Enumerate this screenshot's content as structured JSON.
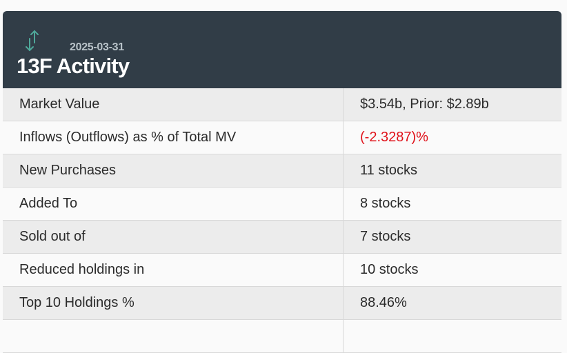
{
  "header": {
    "date": "2025-03-31",
    "title": "13F Activity",
    "icon": "arrows-up-down-icon",
    "icon_color": "#4fa89a"
  },
  "rows": [
    {
      "label": "Market Value",
      "value": "$3.54b, Prior: $2.89b"
    },
    {
      "label": "Inflows (Outflows) as % of Total MV",
      "value": "(-2.3287)%",
      "value_color": "#e0121a"
    },
    {
      "label": "New Purchases",
      "value": "11 stocks"
    },
    {
      "label": "Added To",
      "value": "8 stocks"
    },
    {
      "label": "Sold out of",
      "value": "7 stocks"
    },
    {
      "label": "Reduced holdings in",
      "value": "10 stocks"
    },
    {
      "label": "Top 10 Holdings %",
      "value": "88.46%"
    }
  ]
}
